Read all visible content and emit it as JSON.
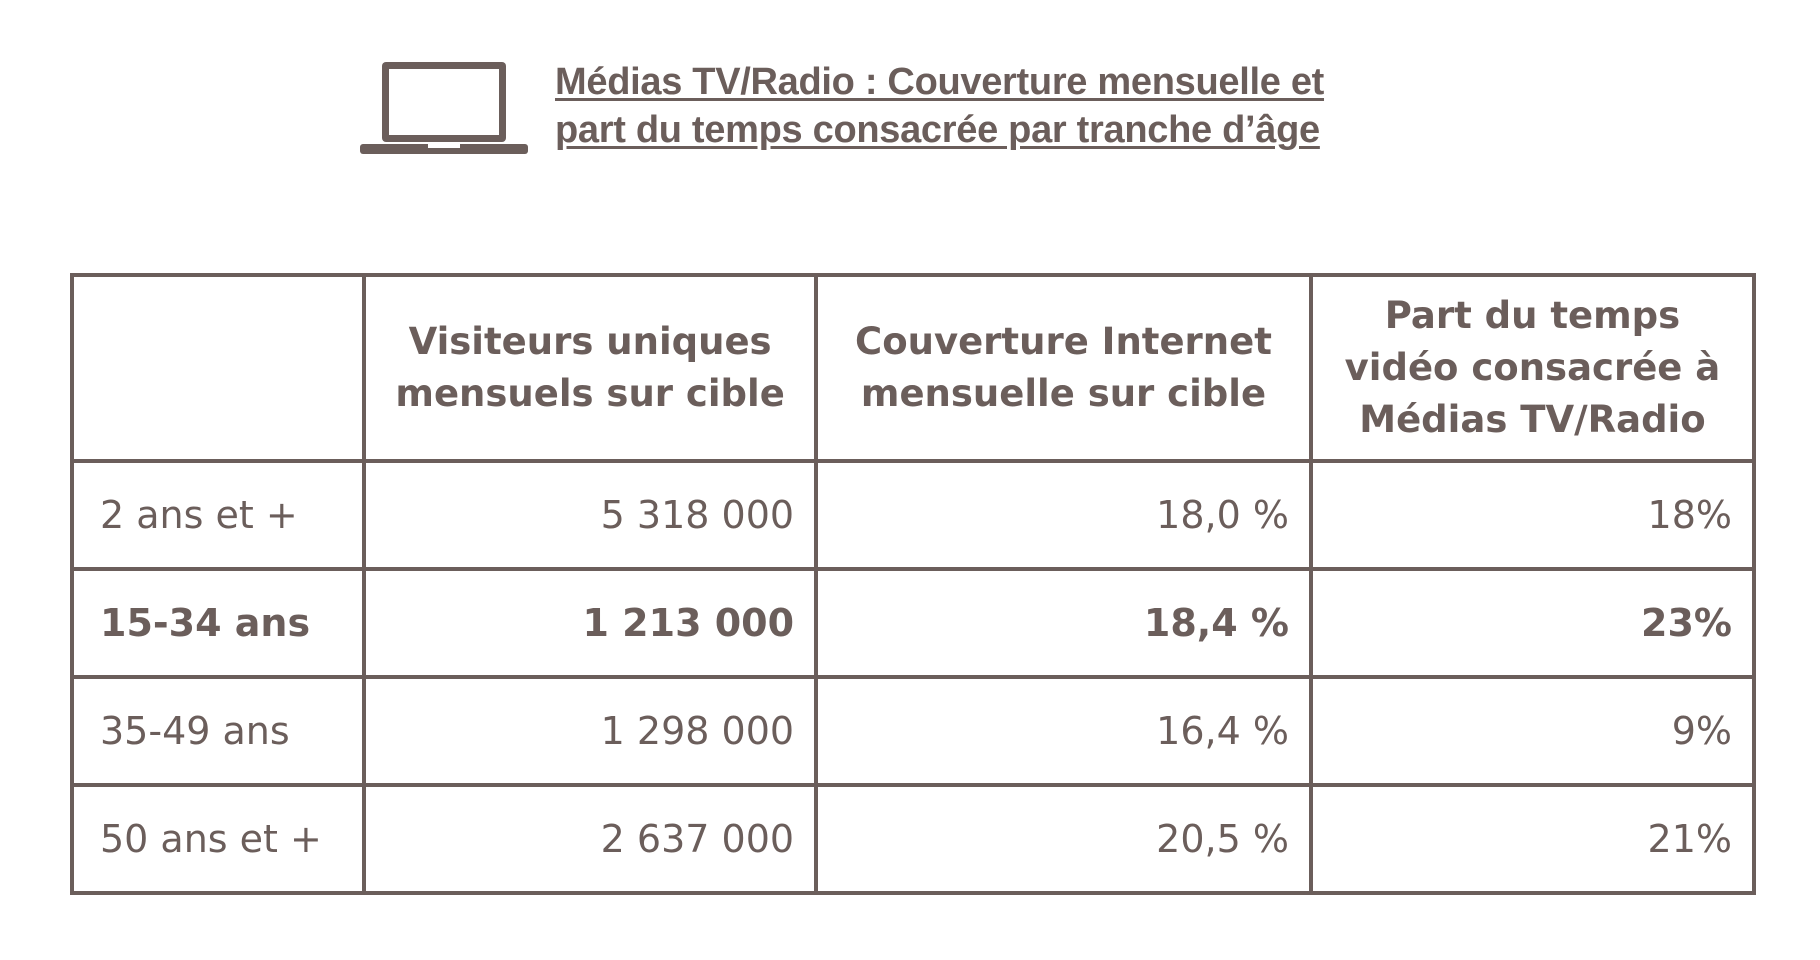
{
  "header": {
    "icon": "laptop-icon",
    "title_line1": "Médias TV/Radio : Couverture mensuelle et",
    "title_line2": "part du temps consacrée par tranche d’âge"
  },
  "table": {
    "columns": [
      "",
      "Visiteurs uniques mensuels sur cible",
      "Couverture Internet mensuelle sur cible",
      "Part du temps vidéo consacrée à Médias TV/Radio"
    ],
    "rows": [
      {
        "label": "2 ans et +",
        "visitors": "5 318 000",
        "coverage": "18,0 %",
        "time_share": "18%",
        "bold": false
      },
      {
        "label": "15-34 ans",
        "visitors": "1 213 000",
        "coverage": "18,4 %",
        "time_share": "23%",
        "bold": true
      },
      {
        "label": "35-49 ans",
        "visitors": "1 298 000",
        "coverage": "16,4 %",
        "time_share": "9%",
        "bold": false
      },
      {
        "label": "50 ans et +",
        "visitors": "2 637 000",
        "coverage": "20,5 %",
        "time_share": "21%",
        "bold": false
      }
    ]
  },
  "colors": {
    "text": "#6b5e5b",
    "border": "#6b5e5b"
  }
}
